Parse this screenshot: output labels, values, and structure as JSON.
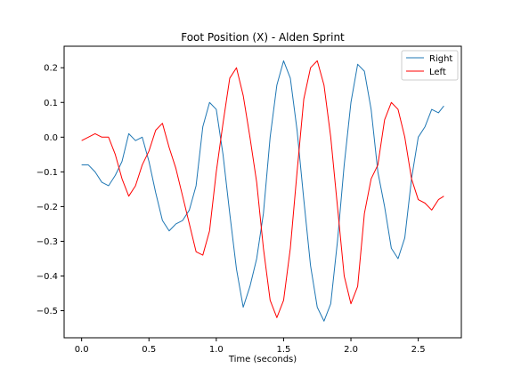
{
  "chart_data": {
    "type": "line",
    "title": "Foot Position (X) - Alden Sprint",
    "xlabel": "Time (seconds)",
    "ylabel": "",
    "xlim": [
      -0.13,
      2.82
    ],
    "ylim": [
      -0.578,
      0.262
    ],
    "x_ticks": [
      0.0,
      0.5,
      1.0,
      1.5,
      2.0,
      2.5
    ],
    "x_tick_labels": [
      "0.0",
      "0.5",
      "1.0",
      "1.5",
      "2.0",
      "2.5"
    ],
    "y_ticks": [
      0.2,
      0.1,
      0.0,
      -0.1,
      -0.2,
      -0.3,
      -0.4,
      -0.5
    ],
    "y_tick_labels": [
      "0.2",
      "0.1",
      "0.0",
      "−0.1",
      "−0.2",
      "−0.3",
      "−0.4",
      "−0.5"
    ],
    "grid": false,
    "legend_position": "top-right",
    "series": [
      {
        "name": "Right",
        "color": "#1f77b4",
        "x": [
          0.0,
          0.05,
          0.1,
          0.15,
          0.2,
          0.25,
          0.3,
          0.35,
          0.4,
          0.45,
          0.5,
          0.55,
          0.6,
          0.65,
          0.7,
          0.75,
          0.8,
          0.85,
          0.9,
          0.95,
          1.0,
          1.05,
          1.1,
          1.15,
          1.2,
          1.25,
          1.3,
          1.35,
          1.4,
          1.45,
          1.5,
          1.55,
          1.6,
          1.65,
          1.7,
          1.75,
          1.8,
          1.85,
          1.9,
          1.95,
          2.0,
          2.05,
          2.1,
          2.15,
          2.2,
          2.25,
          2.3,
          2.35,
          2.4,
          2.45,
          2.5,
          2.55,
          2.6,
          2.65,
          2.69
        ],
        "y": [
          -0.08,
          -0.08,
          -0.1,
          -0.13,
          -0.14,
          -0.11,
          -0.07,
          0.01,
          -0.01,
          0.0,
          -0.07,
          -0.16,
          -0.24,
          -0.27,
          -0.25,
          -0.24,
          -0.21,
          -0.14,
          0.03,
          0.1,
          0.08,
          -0.05,
          -0.22,
          -0.38,
          -0.49,
          -0.43,
          -0.35,
          -0.22,
          0.0,
          0.15,
          0.22,
          0.17,
          0.02,
          -0.18,
          -0.37,
          -0.49,
          -0.53,
          -0.48,
          -0.3,
          -0.08,
          0.1,
          0.21,
          0.19,
          0.08,
          -0.1,
          -0.2,
          -0.32,
          -0.35,
          -0.29,
          -0.12,
          0.0,
          0.03,
          0.08,
          0.07,
          0.09
        ]
      },
      {
        "name": "Left",
        "color": "#ff0000",
        "x": [
          0.0,
          0.05,
          0.1,
          0.15,
          0.2,
          0.25,
          0.3,
          0.35,
          0.4,
          0.45,
          0.5,
          0.55,
          0.6,
          0.65,
          0.7,
          0.75,
          0.8,
          0.85,
          0.9,
          0.95,
          1.0,
          1.05,
          1.1,
          1.15,
          1.2,
          1.25,
          1.3,
          1.35,
          1.4,
          1.45,
          1.5,
          1.55,
          1.6,
          1.65,
          1.7,
          1.75,
          1.8,
          1.85,
          1.9,
          1.95,
          2.0,
          2.05,
          2.1,
          2.15,
          2.2,
          2.25,
          2.3,
          2.35,
          2.4,
          2.45,
          2.5,
          2.55,
          2.6,
          2.65,
          2.69
        ],
        "y": [
          -0.01,
          0.0,
          0.01,
          0.0,
          0.0,
          -0.05,
          -0.12,
          -0.17,
          -0.14,
          -0.08,
          -0.04,
          0.02,
          0.04,
          -0.03,
          -0.09,
          -0.17,
          -0.25,
          -0.33,
          -0.34,
          -0.27,
          -0.1,
          0.04,
          0.17,
          0.2,
          0.12,
          0.0,
          -0.13,
          -0.32,
          -0.47,
          -0.52,
          -0.47,
          -0.32,
          -0.1,
          0.11,
          0.2,
          0.22,
          0.15,
          0.0,
          -0.2,
          -0.4,
          -0.48,
          -0.43,
          -0.22,
          -0.12,
          -0.08,
          0.05,
          0.1,
          0.08,
          0.0,
          -0.12,
          -0.18,
          -0.19,
          -0.21,
          -0.18,
          -0.17
        ]
      }
    ]
  }
}
